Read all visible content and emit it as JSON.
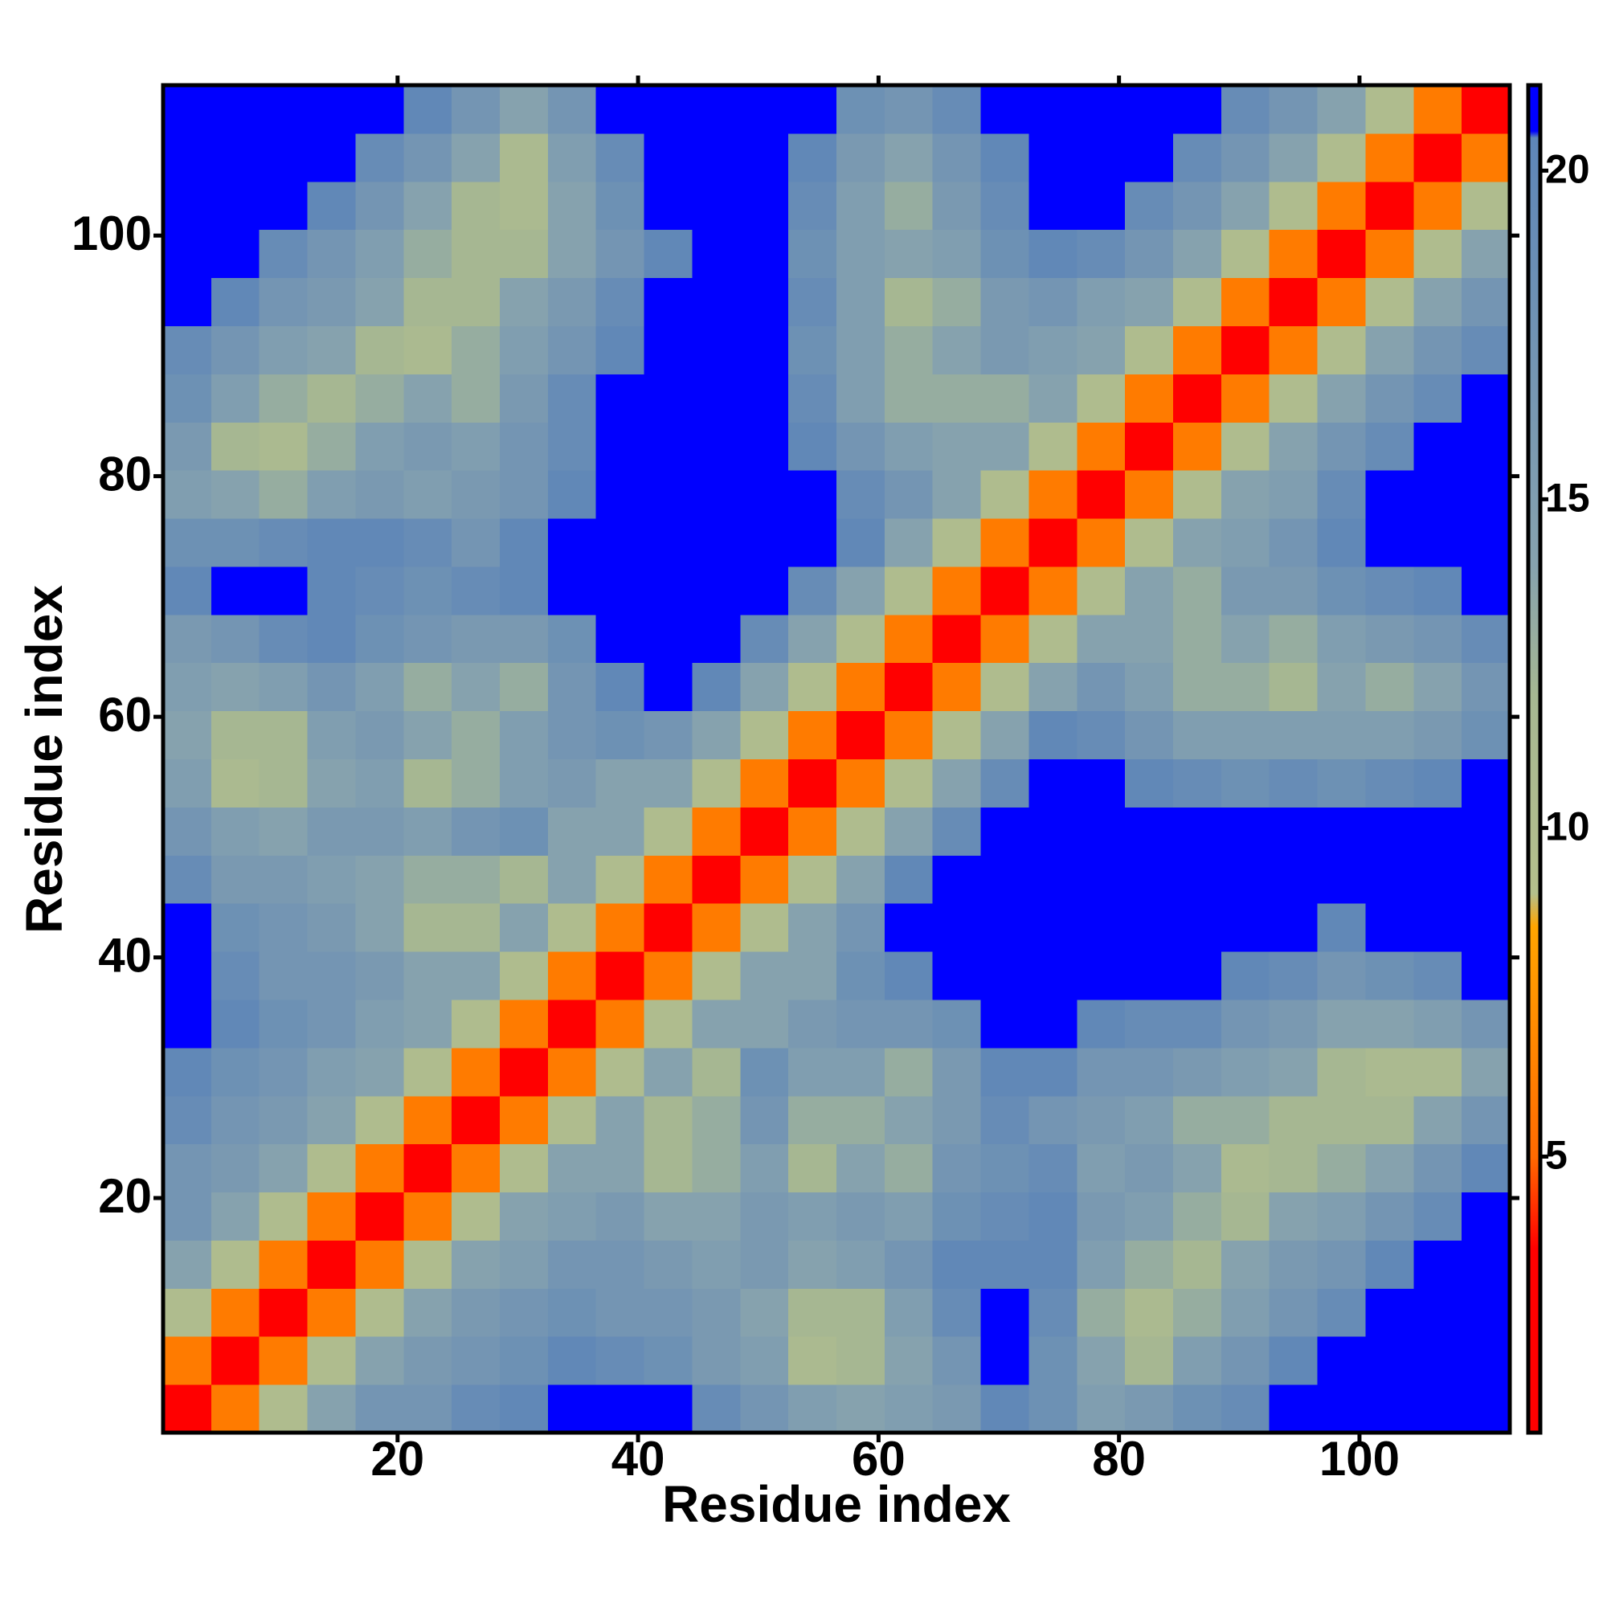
{
  "chart_data": {
    "type": "heatmap",
    "xlabel": "Residue index",
    "ylabel": "Residue index",
    "x": [
      2.5,
      6.5,
      10.5,
      14.5,
      18.5,
      22.5,
      26.5,
      30.5,
      34.5,
      38.5,
      42.5,
      46.5,
      50.5,
      54.5,
      58.5,
      62.5,
      66.5,
      70.5,
      74.5,
      78.5,
      82.5,
      86.5,
      90.5,
      94.5,
      98.5,
      102.5,
      106.5,
      110.5
    ],
    "y": [
      2.5,
      6.5,
      10.5,
      14.5,
      18.5,
      22.5,
      26.5,
      30.5,
      34.5,
      38.5,
      42.5,
      46.5,
      50.5,
      54.5,
      58.5,
      62.5,
      66.5,
      70.5,
      74.5,
      78.5,
      82.5,
      86.5,
      90.5,
      94.5,
      98.5,
      102.5,
      106.5,
      110.5
    ],
    "values": [
      [
        2,
        6,
        10,
        14,
        17,
        17,
        19,
        20,
        21,
        21,
        21,
        19,
        17,
        15,
        14,
        15,
        16,
        20,
        18,
        15,
        16,
        18,
        19,
        21,
        21,
        21,
        21,
        21
      ],
      [
        6,
        2,
        6,
        10,
        14,
        16,
        17,
        18,
        20,
        19,
        18,
        16,
        15,
        11,
        12,
        14,
        17,
        21,
        18,
        14,
        12,
        15,
        17,
        20,
        21,
        21,
        21,
        21
      ],
      [
        10,
        6,
        2,
        6,
        10,
        14,
        16,
        17,
        18,
        17,
        17,
        16,
        14,
        12,
        12,
        15,
        19,
        21,
        19,
        13,
        11,
        13,
        15,
        17,
        19,
        21,
        21,
        21
      ],
      [
        14,
        10,
        6,
        2,
        6,
        10,
        14,
        15,
        17,
        17,
        16,
        15,
        16,
        14,
        15,
        17,
        20,
        20,
        20,
        15,
        13,
        12,
        14,
        16,
        17,
        20,
        21,
        21
      ],
      [
        17,
        14,
        10,
        6,
        2,
        6,
        10,
        14,
        15,
        16,
        14,
        14,
        16,
        15,
        16,
        15,
        18,
        19,
        20,
        16,
        15,
        13,
        12,
        14,
        15,
        17,
        19,
        21
      ],
      [
        17,
        16,
        14,
        10,
        6,
        2,
        6,
        10,
        14,
        14,
        12,
        13,
        15,
        12,
        14,
        13,
        17,
        18,
        19,
        15,
        16,
        14,
        11,
        12,
        13,
        14,
        17,
        20
      ],
      [
        19,
        17,
        16,
        14,
        10,
        6,
        2,
        6,
        10,
        14,
        12,
        13,
        17,
        13,
        13,
        14,
        16,
        19,
        17,
        16,
        15,
        13,
        13,
        12,
        12,
        12,
        14,
        17
      ],
      [
        20,
        18,
        17,
        15,
        14,
        10,
        6,
        2,
        6,
        10,
        14,
        12,
        18,
        15,
        15,
        13,
        16,
        20,
        20,
        17,
        17,
        16,
        15,
        14,
        12,
        11,
        11,
        14
      ],
      [
        21,
        20,
        18,
        17,
        15,
        14,
        10,
        6,
        2,
        6,
        10,
        14,
        14,
        16,
        17,
        17,
        18,
        21,
        21,
        20,
        19,
        19,
        17,
        16,
        14,
        14,
        15,
        17
      ],
      [
        21,
        19,
        17,
        17,
        16,
        14,
        14,
        10,
        6,
        2,
        6,
        10,
        14,
        14,
        18,
        20,
        21,
        21,
        21,
        21,
        21,
        21,
        20,
        19,
        17,
        18,
        19,
        21
      ],
      [
        21,
        18,
        17,
        16,
        14,
        12,
        12,
        14,
        10,
        6,
        2,
        6,
        10,
        14,
        17,
        21,
        21,
        21,
        21,
        21,
        21,
        21,
        21,
        21,
        20,
        21,
        21,
        21
      ],
      [
        19,
        16,
        16,
        15,
        14,
        13,
        13,
        12,
        14,
        10,
        6,
        2,
        6,
        10,
        14,
        20,
        21,
        21,
        21,
        21,
        21,
        21,
        21,
        21,
        21,
        21,
        21,
        21
      ],
      [
        17,
        15,
        14,
        16,
        16,
        15,
        17,
        18,
        14,
        14,
        10,
        6,
        2,
        6,
        10,
        14,
        19,
        21,
        21,
        21,
        21,
        21,
        21,
        21,
        21,
        21,
        21,
        21
      ],
      [
        15,
        11,
        12,
        14,
        15,
        12,
        13,
        15,
        16,
        14,
        14,
        10,
        6,
        2,
        6,
        10,
        14,
        19,
        21,
        21,
        20,
        19,
        18,
        19,
        18,
        19,
        20,
        21
      ],
      [
        14,
        12,
        12,
        15,
        16,
        14,
        13,
        15,
        17,
        18,
        17,
        14,
        10,
        6,
        2,
        6,
        10,
        14,
        20,
        19,
        17,
        15,
        15,
        15,
        15,
        15,
        16,
        18
      ],
      [
        15,
        14,
        15,
        17,
        15,
        13,
        14,
        13,
        17,
        20,
        21,
        20,
        14,
        10,
        6,
        2,
        6,
        10,
        14,
        17,
        15,
        13,
        13,
        12,
        14,
        13,
        14,
        17
      ],
      [
        16,
        17,
        19,
        20,
        18,
        17,
        16,
        16,
        18,
        21,
        21,
        21,
        19,
        14,
        10,
        6,
        2,
        6,
        10,
        14,
        14,
        13,
        14,
        13,
        15,
        16,
        17,
        19
      ],
      [
        20,
        21,
        21,
        20,
        19,
        18,
        19,
        20,
        21,
        21,
        21,
        21,
        21,
        19,
        14,
        10,
        6,
        2,
        6,
        10,
        14,
        13,
        16,
        16,
        18,
        19,
        20,
        21
      ],
      [
        18,
        18,
        19,
        20,
        20,
        19,
        17,
        20,
        21,
        21,
        21,
        21,
        21,
        21,
        20,
        14,
        10,
        6,
        2,
        6,
        10,
        14,
        15,
        17,
        20,
        21,
        21,
        21
      ],
      [
        15,
        14,
        13,
        15,
        16,
        15,
        16,
        17,
        20,
        21,
        21,
        21,
        21,
        21,
        19,
        17,
        14,
        10,
        6,
        2,
        6,
        10,
        14,
        15,
        19,
        21,
        21,
        21
      ],
      [
        16,
        12,
        11,
        13,
        15,
        16,
        15,
        17,
        19,
        21,
        21,
        21,
        21,
        20,
        17,
        15,
        14,
        14,
        10,
        6,
        2,
        6,
        10,
        14,
        17,
        19,
        21,
        21
      ],
      [
        18,
        15,
        13,
        12,
        13,
        14,
        13,
        16,
        19,
        21,
        21,
        21,
        21,
        19,
        15,
        13,
        13,
        13,
        14,
        10,
        6,
        2,
        6,
        10,
        14,
        17,
        19,
        21
      ],
      [
        19,
        17,
        15,
        14,
        12,
        11,
        13,
        15,
        17,
        20,
        21,
        21,
        21,
        18,
        15,
        13,
        14,
        16,
        15,
        14,
        10,
        6,
        2,
        6,
        10,
        14,
        17,
        19
      ],
      [
        21,
        20,
        17,
        16,
        14,
        12,
        12,
        14,
        16,
        19,
        21,
        21,
        21,
        19,
        15,
        12,
        13,
        16,
        17,
        15,
        14,
        10,
        6,
        2,
        6,
        10,
        14,
        17
      ],
      [
        21,
        21,
        19,
        17,
        15,
        13,
        12,
        12,
        14,
        17,
        20,
        21,
        21,
        18,
        15,
        14,
        15,
        18,
        20,
        19,
        17,
        14,
        10,
        6,
        2,
        6,
        10,
        14
      ],
      [
        21,
        21,
        21,
        20,
        17,
        14,
        12,
        11,
        14,
        18,
        21,
        21,
        21,
        19,
        15,
        13,
        16,
        19,
        21,
        21,
        19,
        17,
        14,
        10,
        6,
        2,
        6,
        10
      ],
      [
        21,
        21,
        21,
        21,
        19,
        17,
        14,
        11,
        15,
        19,
        21,
        21,
        21,
        20,
        16,
        14,
        17,
        20,
        21,
        21,
        21,
        19,
        17,
        14,
        10,
        6,
        2,
        6
      ],
      [
        21,
        21,
        21,
        21,
        21,
        20,
        17,
        14,
        17,
        21,
        21,
        21,
        21,
        21,
        18,
        17,
        19,
        21,
        21,
        21,
        21,
        21,
        19,
        17,
        14,
        10,
        6,
        2
      ]
    ],
    "xlim": [
      0.5,
      112.5
    ],
    "ylim": [
      0.5,
      112.5
    ],
    "xticks": [
      20,
      40,
      60,
      80,
      100
    ],
    "yticks": [
      20,
      40,
      60,
      80,
      100
    ],
    "zlim": [
      0.8,
      21.3
    ],
    "zticks": [
      5,
      10,
      15,
      20
    ],
    "colorscale": [
      [
        0.8,
        "#ff0000"
      ],
      [
        3.6,
        "#ff0000"
      ],
      [
        5.0,
        "#ff6a00"
      ],
      [
        8.5,
        "#ffa500"
      ],
      [
        9.0,
        "#b4bf8c"
      ],
      [
        12.0,
        "#a6b792"
      ],
      [
        14.0,
        "#86a2ae"
      ],
      [
        20.5,
        "#5e86b8"
      ],
      [
        20.6,
        "#0000ff"
      ],
      [
        21.3,
        "#0000ff"
      ]
    ]
  }
}
